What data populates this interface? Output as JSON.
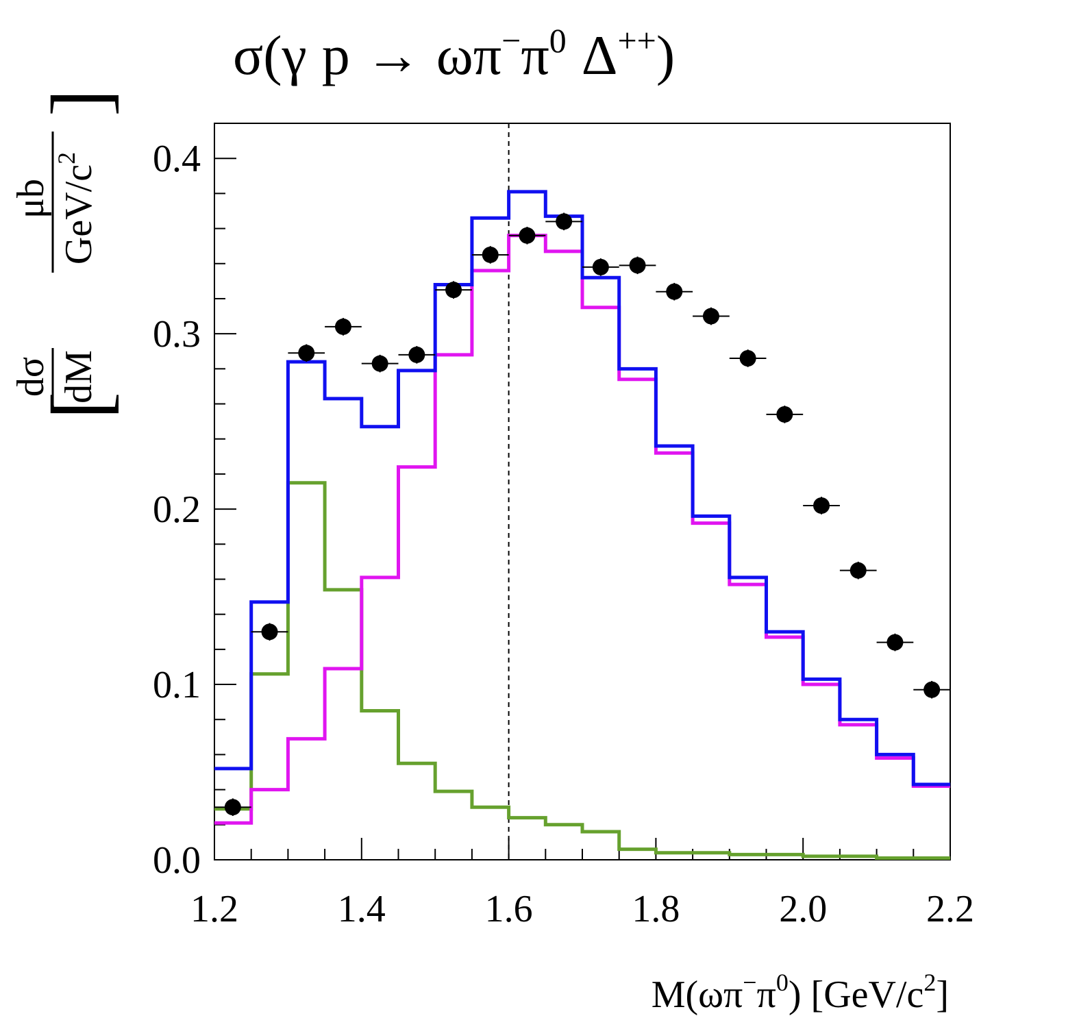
{
  "chart_data": {
    "type": "histogram",
    "title": {
      "sigma": "σ",
      "open": "(",
      "gamma": "γ",
      "p": "p",
      "arrow": "→",
      "omega_pi": "ωπ",
      "minus": "−",
      "pi": "π",
      "zero": "0",
      "delta": "Δ",
      "plusplus": "++",
      "close": ")"
    },
    "xlabel": {
      "main": "M(ωπ",
      "minus": "−",
      "pi": "π",
      "zero": "0",
      "paren": ") [GeV/c",
      "two": "2",
      "close": "]"
    },
    "ylabel": {
      "num": "dσ",
      "den": "dM",
      "bracket_open": "[",
      "unit_num": "μb",
      "unit_den": "GeV/c",
      "unit_sup": "2",
      "bracket_close": "]"
    },
    "xlim": [
      1.2,
      2.2
    ],
    "ylim": [
      0.0,
      0.42
    ],
    "x_ticks": [
      "1.2",
      "1.4",
      "1.6",
      "1.8",
      "2.0",
      "2.2"
    ],
    "x_tick_values": [
      1.2,
      1.4,
      1.6,
      1.8,
      2.0,
      2.2
    ],
    "y_ticks": [
      "0.0",
      "0.1",
      "0.2",
      "0.3",
      "0.4"
    ],
    "y_tick_values": [
      0.0,
      0.1,
      0.2,
      0.3,
      0.4
    ],
    "x_minor_step": 0.05,
    "y_minor_step": 0.02,
    "vline_x": 1.6,
    "bin_edges": [
      1.2,
      1.25,
      1.3,
      1.35,
      1.4,
      1.45,
      1.5,
      1.55,
      1.6,
      1.65,
      1.7,
      1.75,
      1.8,
      1.85,
      1.9,
      1.95,
      2.0,
      2.05,
      2.1,
      2.15,
      2.2
    ],
    "series": [
      {
        "kind": "step",
        "color": "#66A12E",
        "values": [
          0.029,
          0.106,
          0.215,
          0.154,
          0.085,
          0.055,
          0.039,
          0.03,
          0.024,
          0.02,
          0.016,
          0.006,
          0.004,
          0.004,
          0.003,
          0.003,
          0.002,
          0.002,
          0.001,
          0.001
        ]
      },
      {
        "kind": "step",
        "color": "#E015F0",
        "values": [
          0.021,
          0.04,
          0.069,
          0.109,
          0.161,
          0.224,
          0.288,
          0.336,
          0.356,
          0.347,
          0.315,
          0.274,
          0.232,
          0.192,
          0.157,
          0.127,
          0.1,
          0.077,
          0.058,
          0.042
        ]
      },
      {
        "kind": "step",
        "color": "#1010F0",
        "values": [
          0.052,
          0.147,
          0.284,
          0.263,
          0.247,
          0.279,
          0.328,
          0.366,
          0.381,
          0.367,
          0.332,
          0.28,
          0.236,
          0.196,
          0.161,
          0.13,
          0.103,
          0.08,
          0.06,
          0.043
        ]
      },
      {
        "kind": "points",
        "color": "#000000",
        "x": [
          1.225,
          1.275,
          1.325,
          1.375,
          1.425,
          1.475,
          1.525,
          1.575,
          1.625,
          1.675,
          1.725,
          1.775,
          1.825,
          1.875,
          1.925,
          1.975,
          2.025,
          2.075,
          2.125,
          2.175
        ],
        "values": [
          0.03,
          0.13,
          0.289,
          0.304,
          0.283,
          0.288,
          0.325,
          0.345,
          0.356,
          0.364,
          0.338,
          0.339,
          0.324,
          0.31,
          0.286,
          0.254,
          0.202,
          0.165,
          0.124,
          0.097
        ],
        "xerr": 0.025,
        "yerr": 0.005
      }
    ]
  }
}
